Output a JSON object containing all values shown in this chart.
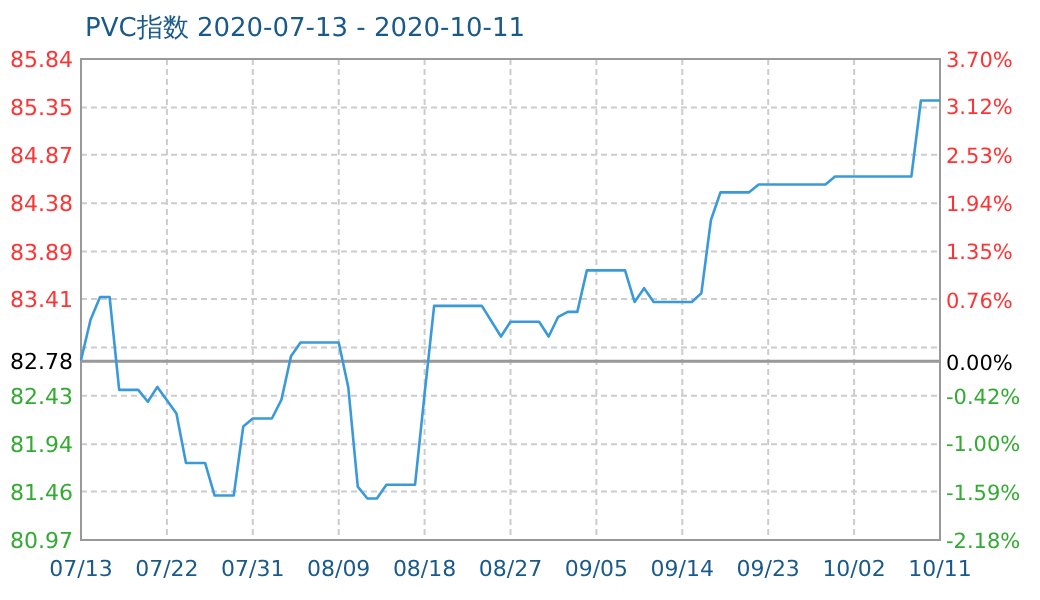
{
  "chart_data": {
    "type": "line",
    "title": "PVC指数 2020-07-13 - 2020-10-11",
    "x": [
      "2020-07-13",
      "2020-07-14",
      "2020-07-15",
      "2020-07-16",
      "2020-07-17",
      "2020-07-19",
      "2020-07-20",
      "2020-07-21",
      "2020-07-23",
      "2020-07-24",
      "2020-07-26",
      "2020-07-27",
      "2020-07-29",
      "2020-07-30",
      "2020-07-31",
      "2020-08-02",
      "2020-08-03",
      "2020-08-04",
      "2020-08-05",
      "2020-08-09",
      "2020-08-10",
      "2020-08-11",
      "2020-08-12",
      "2020-08-13",
      "2020-08-14",
      "2020-08-17",
      "2020-08-18",
      "2020-08-19",
      "2020-08-24",
      "2020-08-26",
      "2020-08-27",
      "2020-08-30",
      "2020-08-31",
      "2020-09-01",
      "2020-09-02",
      "2020-09-03",
      "2020-09-04",
      "2020-09-08",
      "2020-09-09",
      "2020-09-10",
      "2020-09-11",
      "2020-09-15",
      "2020-09-16",
      "2020-09-17",
      "2020-09-18",
      "2020-09-21",
      "2020-09-22",
      "2020-09-29",
      "2020-09-30",
      "2020-10-08",
      "2020-10-09",
      "2020-10-11"
    ],
    "series": [
      {
        "color": "#3a9ad9",
        "values": [
          82.79,
          83.2,
          83.43,
          83.43,
          82.49,
          82.49,
          82.37,
          82.52,
          82.25,
          81.75,
          81.75,
          81.42,
          81.42,
          82.12,
          82.2,
          82.2,
          82.39,
          82.83,
          82.97,
          82.97,
          82.52,
          81.51,
          81.39,
          81.39,
          81.53,
          81.53,
          82.45,
          83.34,
          83.34,
          83.03,
          83.18,
          83.18,
          83.03,
          83.23,
          83.28,
          83.28,
          83.7,
          83.7,
          83.38,
          83.52,
          83.38,
          83.38,
          83.47,
          84.21,
          84.49,
          84.49,
          84.57,
          84.57,
          84.65,
          84.65,
          85.42,
          85.42
        ]
      }
    ],
    "xlim": [
      "2020-07-13",
      "2020-10-11"
    ],
    "xticks": [
      {
        "value": "2020-07-13",
        "label": "07/13"
      },
      {
        "value": "2020-07-22",
        "label": "07/22"
      },
      {
        "value": "2020-07-31",
        "label": "07/31"
      },
      {
        "value": "2020-08-09",
        "label": "08/09"
      },
      {
        "value": "2020-08-18",
        "label": "08/18"
      },
      {
        "value": "2020-08-27",
        "label": "08/27"
      },
      {
        "value": "2020-09-05",
        "label": "09/05"
      },
      {
        "value": "2020-09-14",
        "label": "09/14"
      },
      {
        "value": "2020-09-23",
        "label": "09/23"
      },
      {
        "value": "2020-10-02",
        "label": "10/02"
      },
      {
        "value": "2020-10-11",
        "label": "10/11"
      }
    ],
    "ylim": [
      80.97,
      85.84
    ],
    "yticks": [
      80.97,
      81.46,
      81.94,
      82.43,
      {
        "value": 82.78,
        "label": "82.78"
      },
      {
        "value": 82.92,
        "label": null
      },
      83.41,
      83.89,
      84.38,
      84.87,
      85.35,
      85.84
    ],
    "y2lim": [
      -2.18,
      3.7
    ],
    "y2ticks": [
      {
        "value": -2.18,
        "label": "-2.18%"
      },
      {
        "value": -1.59,
        "label": "-1.59%"
      },
      {
        "value": -1.0,
        "label": "-1.00%"
      },
      {
        "value": -0.42,
        "label": "-0.42%"
      },
      {
        "value": 0,
        "label": "0.00%"
      },
      {
        "value": 0.76,
        "label": "0.76%"
      },
      {
        "value": 1.35,
        "label": "1.35%"
      },
      {
        "value": 1.94,
        "label": "1.94%"
      },
      {
        "value": 2.53,
        "label": "2.53%"
      },
      {
        "value": 3.12,
        "label": "3.12%"
      },
      {
        "value": 3.7,
        "label": "3.70%"
      }
    ],
    "ref_lines": [
      {
        "axis": "y",
        "value": 82.78,
        "color": "#999999"
      }
    ],
    "grid": true,
    "marker": "none",
    "line_style": "solid"
  }
}
